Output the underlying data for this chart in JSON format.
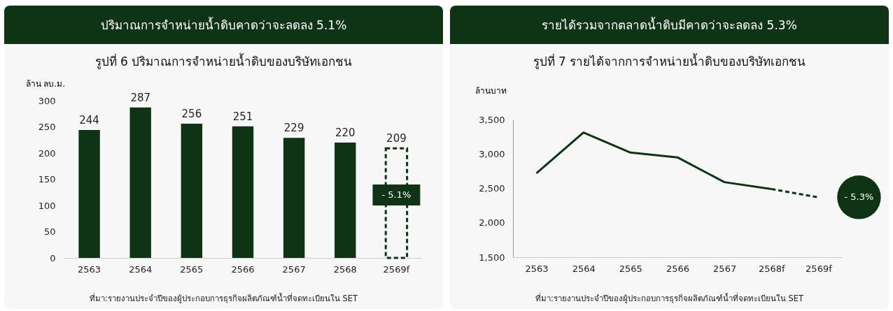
{
  "chart_data": [
    {
      "type": "bar",
      "title": "ปริมาณการจำหน่ายน้ำดิบคาดว่าจะลดลง 5.1%",
      "subtitle": "รูปที่ 6 ปริมาณการจำหน่ายน้ำดิบของบริษัทเอกชน",
      "ylabel": "ล้าน ลบ.ม.",
      "categories": [
        "2563",
        "2564",
        "2565",
        "2566",
        "2567",
        "2568",
        "2569f"
      ],
      "series": [
        {
          "color": "#0e3315",
          "values": [
            244,
            287,
            256,
            251,
            229,
            220,
            null
          ]
        },
        {
          "color": "#0e3315",
          "line_style": "dashed",
          "values": [
            null,
            null,
            null,
            null,
            null,
            null,
            209
          ]
        }
      ],
      "ylim": [
        0,
        300
      ],
      "yticks": [
        0,
        50,
        100,
        150,
        200,
        250,
        300
      ],
      "grid": false,
      "data_labels": true,
      "annotations": [
        "- 5.1%",
        "ที่มา:รายงานประจำปีของผู้ประกอบการธุรกิจผลิตภัณฑ์น้ำที่จดทะเบียนใน SET"
      ]
    },
    {
      "type": "line",
      "title": "รายได้รวมจากตลาดน้ำดิบมีคาดว่าจะลดลง 5.3%",
      "subtitle": "รูปที่ 7 รายได้จากการจำหน่ายน้ำดิบของบริษัทเอกชน",
      "ylabel": "ล้านบาท",
      "categories": [
        "2563",
        "2564",
        "2565",
        "2566",
        "2567",
        "2568f",
        "2569f"
      ],
      "series": [
        {
          "color": "#0e3315",
          "line_style": "solid",
          "values": [
            2720,
            3310,
            3020,
            2950,
            2590,
            2490,
            null
          ]
        },
        {
          "color": "#0e3315",
          "line_style": "dashed",
          "values": [
            null,
            null,
            null,
            null,
            null,
            2490,
            2370
          ]
        }
      ],
      "ylim": [
        1500,
        3500
      ],
      "yticks": [
        {
          "value": 1500,
          "label": "1,500"
        },
        {
          "value": 2000,
          "label": "2,000"
        },
        {
          "value": 2500,
          "label": "2,500"
        },
        {
          "value": 3000,
          "label": "3,000"
        },
        {
          "value": 3500,
          "label": "3,500"
        }
      ],
      "grid": false,
      "marker": "none",
      "annotations": [
        {
          "text": "- 5.3%",
          "x": "2569f",
          "y": 2370
        },
        "ที่มา:รายงานประจำปีของผู้ประกอบการธุรกิจผลิตภัณฑ์น้ำที่จดทะเบียนใน SET"
      ]
    }
  ]
}
